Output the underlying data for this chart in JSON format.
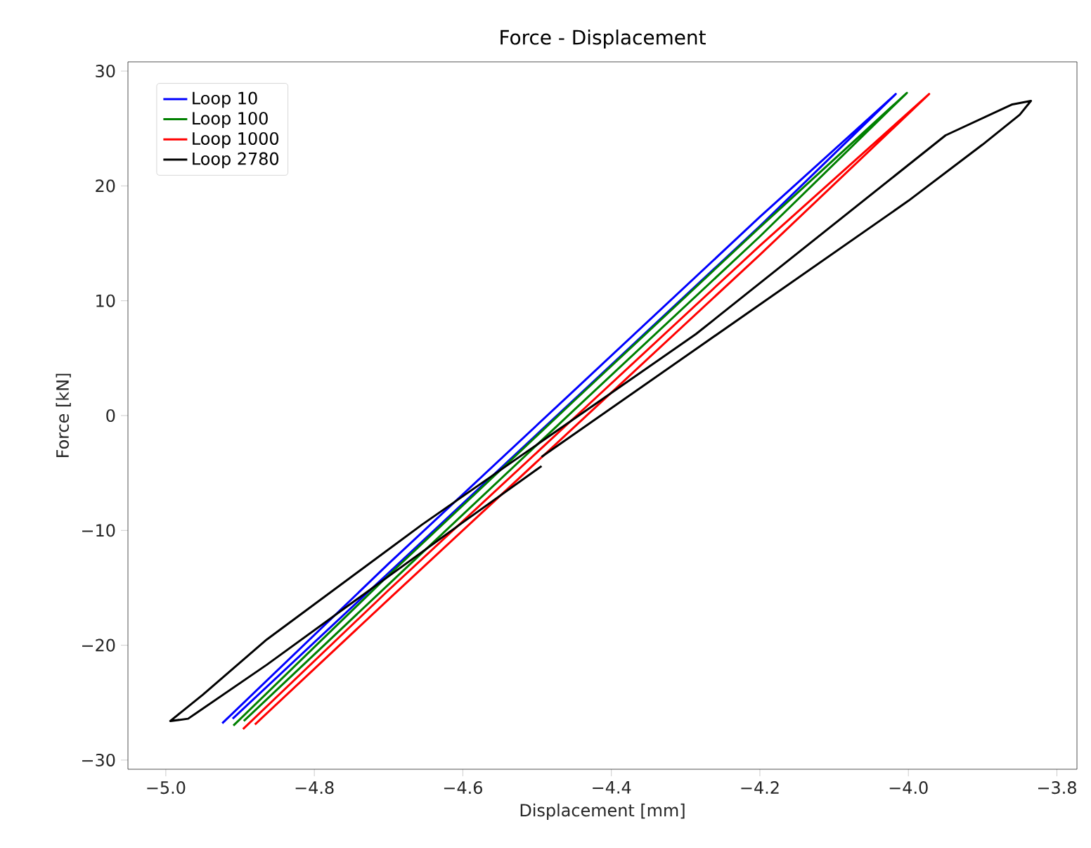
{
  "chart_data": {
    "type": "line",
    "title": "Force - Displacement",
    "xlabel": "Displacement [mm]",
    "ylabel": "Force [kN]",
    "xlim": [
      -5.051,
      -3.773
    ],
    "ylim": [
      -30.8,
      30.8
    ],
    "xticks": [
      {
        "value": -5.0,
        "label": "−5.0"
      },
      {
        "value": -4.8,
        "label": "−4.8"
      },
      {
        "value": -4.6,
        "label": "−4.6"
      },
      {
        "value": -4.4,
        "label": "−4.4"
      },
      {
        "value": -4.2,
        "label": "−4.2"
      },
      {
        "value": -4.0,
        "label": "−4.0"
      },
      {
        "value": -3.8,
        "label": "−3.8"
      }
    ],
    "yticks": [
      {
        "value": -30,
        "label": "−30"
      },
      {
        "value": -20,
        "label": "−20"
      },
      {
        "value": -10,
        "label": "−10"
      },
      0,
      10,
      20,
      30
    ],
    "grid": false,
    "legend": "top left",
    "marker": "none",
    "line_style": "solid",
    "series": [
      {
        "name": "Loop 10",
        "color": "#0000ff",
        "x": [
          -4.924,
          -4.7,
          -4.45,
          -4.2,
          -4.017,
          -4.2,
          -4.45,
          -4.7,
          -4.91
        ],
        "values": [
          -26.8,
          -12.9,
          2.2,
          17.3,
          28.0,
          16.5,
          1.4,
          -13.7,
          -26.4
        ]
      },
      {
        "name": "Loop 100",
        "color": "#008000",
        "x": [
          -4.909,
          -4.7,
          -4.45,
          -4.2,
          -4.002,
          -4.2,
          -4.45,
          -4.7,
          -4.895
        ],
        "values": [
          -27.0,
          -13.9,
          1.3,
          16.4,
          28.1,
          15.6,
          0.5,
          -14.7,
          -26.6
        ]
      },
      {
        "name": "Loop 1000",
        "color": "#ff0000",
        "x": [
          -4.896,
          -4.7,
          -4.45,
          -4.2,
          -3.972,
          -4.2,
          -4.45,
          -4.7,
          -4.88
        ],
        "values": [
          -27.3,
          -15.2,
          -0.2,
          14.8,
          28.0,
          14.0,
          -1.0,
          -16.0,
          -26.9
        ]
      },
      {
        "name": "Loop 2780",
        "color": "#000000",
        "x": [
          -4.494,
          -4.277,
          -4.0,
          -3.9,
          -3.85,
          -3.835,
          -3.86,
          -3.95,
          -4.286,
          -4.655,
          -4.864,
          -4.95,
          -4.994,
          -4.97,
          -4.864,
          -4.7,
          -4.6,
          -4.494
        ],
        "values": [
          -3.6,
          6.2,
          18.7,
          23.6,
          26.2,
          27.4,
          27.1,
          24.4,
          7.1,
          -9.5,
          -19.5,
          -24.3,
          -26.6,
          -26.4,
          -21.7,
          -14.0,
          -9.3,
          -4.4
        ]
      }
    ]
  }
}
